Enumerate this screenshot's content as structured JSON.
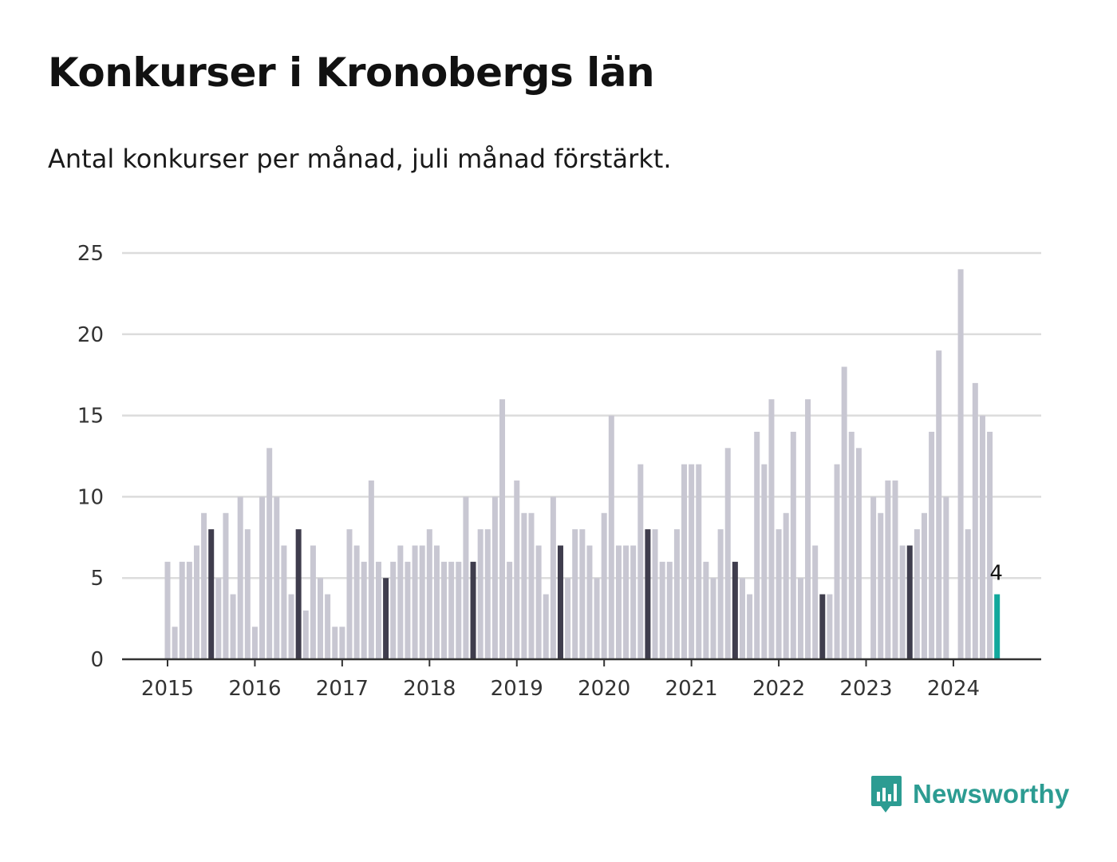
{
  "title": "Konkurser i Kronobergs län",
  "subtitle": "Antal konkurser per månad, juli månad förstärkt.",
  "brand": "Newsworthy",
  "colors": {
    "bar": "#c8c7d2",
    "july": "#3f3d4d",
    "latest": "#12a89c",
    "grid": "#dcdcdc",
    "axis": "#333333",
    "brand": "#2c9c92"
  },
  "chart_data": {
    "type": "bar",
    "start": "2015-01",
    "x_ticks": [
      "2015",
      "2016",
      "2017",
      "2018",
      "2019",
      "2020",
      "2021",
      "2022",
      "2023",
      "2024"
    ],
    "y_ticks": [
      "0",
      "5",
      "10",
      "15",
      "20",
      "25"
    ],
    "ylim": [
      0,
      25
    ],
    "grid": true,
    "highlight": "juli",
    "last_value_label": "4",
    "values": [
      6,
      2,
      6,
      6,
      7,
      9,
      8,
      5,
      9,
      4,
      10,
      8,
      2,
      10,
      13,
      10,
      7,
      4,
      8,
      3,
      7,
      5,
      4,
      2,
      2,
      8,
      7,
      6,
      11,
      6,
      5,
      6,
      7,
      6,
      7,
      7,
      8,
      7,
      6,
      6,
      6,
      10,
      6,
      8,
      8,
      10,
      16,
      6,
      11,
      9,
      9,
      7,
      4,
      10,
      7,
      5,
      8,
      8,
      7,
      5,
      9,
      15,
      7,
      7,
      7,
      12,
      8,
      8,
      6,
      6,
      8,
      12,
      12,
      12,
      6,
      5,
      8,
      13,
      6,
      5,
      4,
      14,
      12,
      16,
      8,
      9,
      14,
      5,
      16,
      7,
      4,
      4,
      12,
      18,
      14,
      13,
      0,
      10,
      9,
      11,
      11,
      7,
      7,
      8,
      9,
      14,
      19,
      10,
      0,
      24,
      8,
      17,
      15,
      14,
      4
    ]
  }
}
